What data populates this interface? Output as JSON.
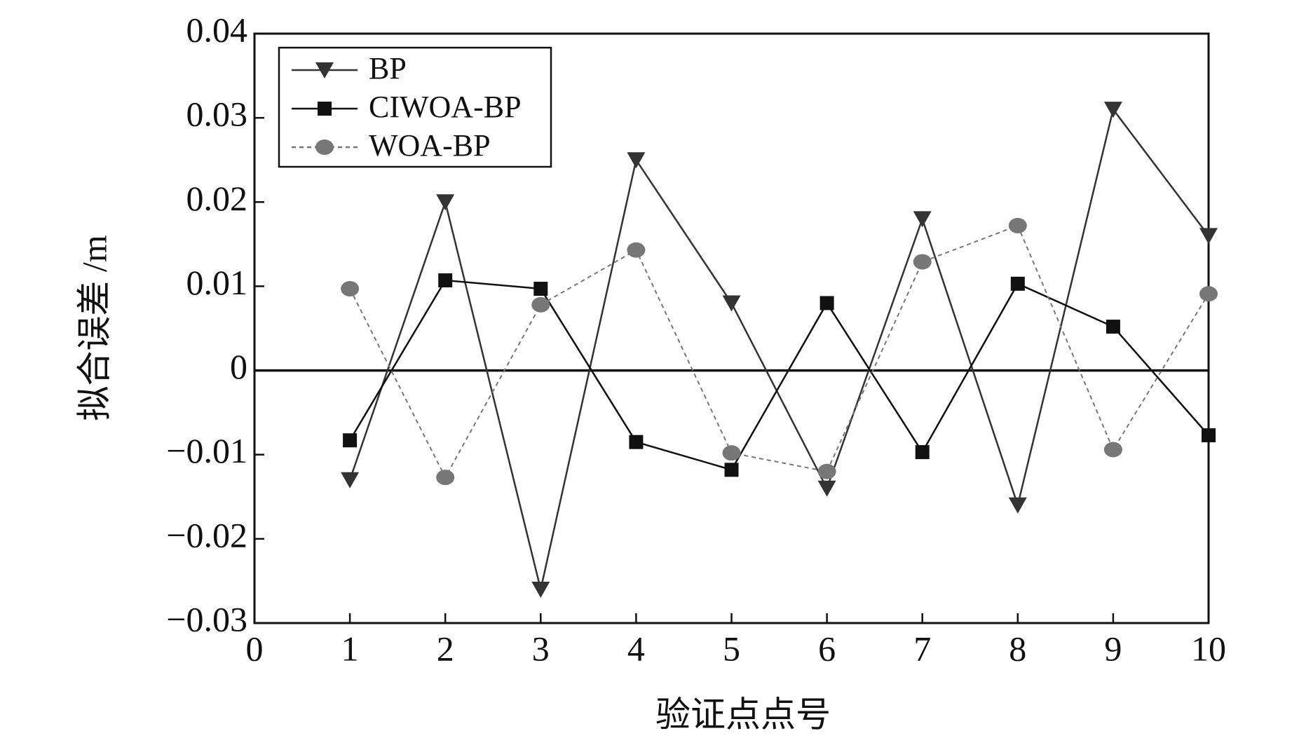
{
  "chart_data": {
    "type": "line",
    "x_label": "验证点点号",
    "y_label": "拟合误差 /m",
    "xlim": [
      0,
      10
    ],
    "xticks": [
      0,
      1,
      2,
      3,
      4,
      5,
      6,
      7,
      8,
      9,
      10
    ],
    "ylim": [
      -0.03,
      0.04
    ],
    "yticks": [
      {
        "value": -0.03,
        "label": "−0.03"
      },
      {
        "value": -0.02,
        "label": "−0.02"
      },
      {
        "value": -0.01,
        "label": "−0.01"
      },
      0,
      0.01,
      0.02,
      0.03,
      0.04
    ],
    "x": [
      1,
      2,
      3,
      4,
      5,
      6,
      7,
      8,
      9,
      10
    ],
    "legend": "upper left",
    "series": [
      {
        "name": "BP",
        "color": "#333333",
        "marker": "triangle-down",
        "linestyle": "solid",
        "values": [
          -0.013,
          0.02,
          -0.026,
          0.025,
          0.008,
          -0.014,
          0.018,
          -0.016,
          0.031,
          0.016
        ]
      },
      {
        "name": "CIWOA-BP",
        "color": "#111111",
        "marker": "square",
        "linestyle": "solid",
        "values": [
          -0.0083,
          0.0107,
          0.0097,
          -0.0085,
          -0.0118,
          0.008,
          -0.0097,
          0.0103,
          0.0052,
          -0.0077
        ]
      },
      {
        "name": "WOA-BP",
        "color": "#777777",
        "marker": "circle",
        "linestyle": "dashed",
        "values": [
          0.0097,
          -0.0127,
          0.0078,
          0.0143,
          -0.0098,
          -0.012,
          0.0129,
          0.0172,
          -0.0094,
          0.0091
        ]
      }
    ]
  }
}
